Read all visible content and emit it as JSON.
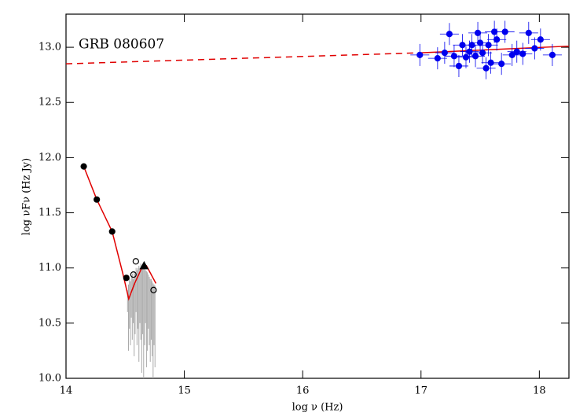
{
  "chart_data": {
    "type": "scatter",
    "annotation": "GRB 080607",
    "xlabel": "log ν (Hz)",
    "ylabel": "log νFν (Hz Jy)",
    "xlim": [
      14,
      18.25
    ],
    "ylim": [
      10,
      13.3
    ],
    "xticks": [
      14,
      15,
      16,
      17,
      18
    ],
    "yticks": [
      {
        "value": 10,
        "label": "10.0"
      },
      {
        "value": 10.5,
        "label": "10.5"
      },
      {
        "value": 11,
        "label": "11.0"
      },
      {
        "value": 11.5,
        "label": "11.5"
      },
      {
        "value": 12,
        "label": "12.0"
      },
      {
        "value": 12.5,
        "label": "12.5"
      },
      {
        "value": 13,
        "label": "13.0"
      }
    ],
    "spectrum": {
      "color": "#aaaaaa",
      "x": [
        14.52,
        14.528,
        14.536,
        14.544,
        14.552,
        14.56,
        14.568,
        14.576,
        14.584,
        14.592,
        14.6,
        14.608,
        14.616,
        14.624,
        14.632,
        14.64,
        14.648,
        14.656,
        14.664,
        14.672,
        14.68,
        14.688,
        14.696,
        14.704,
        14.712,
        14.72,
        14.728,
        14.736,
        14.744,
        14.752
      ],
      "low": [
        10.6,
        10.25,
        10.45,
        10.3,
        10.55,
        10.35,
        10.5,
        10.2,
        10.4,
        10.6,
        10.3,
        10.45,
        10.15,
        10.5,
        10.35,
        10.05,
        10.4,
        10.0,
        10.3,
        10.5,
        10.1,
        10.25,
        10.45,
        10.3,
        10.15,
        10.35,
        10.2,
        10.0,
        10.3,
        10.1
      ],
      "high": [
        10.8,
        10.85,
        10.9,
        10.88,
        10.92,
        10.95,
        10.9,
        10.97,
        10.95,
        11.0,
        10.98,
        11.0,
        11.02,
        11.0,
        11.04,
        11.02,
        11.03,
        11.0,
        11.02,
        10.98,
        10.97,
        10.96,
        10.94,
        10.92,
        10.9,
        10.9,
        10.88,
        10.86,
        10.85,
        10.84
      ]
    },
    "lines": [
      {
        "color": "#e00000",
        "dashed": false,
        "x": [
          14.15,
          14.26,
          14.39,
          14.48,
          14.53,
          14.58,
          14.64,
          14.68,
          14.74,
          14.76
        ],
        "y": [
          11.92,
          11.62,
          11.33,
          10.95,
          10.72,
          10.86,
          11.0,
          11.02,
          10.9,
          10.86
        ]
      },
      {
        "color": "#e00000",
        "dashed": true,
        "x": [
          14,
          17
        ],
        "y": [
          12.85,
          12.95
        ]
      },
      {
        "color": "#e00000",
        "dashed": false,
        "x": [
          17,
          18.25
        ],
        "y": [
          12.95,
          13.01
        ]
      }
    ],
    "points": [
      {
        "marker": "circle",
        "color": "#000000",
        "filled": true,
        "x": [
          14.15,
          14.26,
          14.39,
          14.51
        ],
        "y": [
          11.92,
          11.62,
          11.33,
          10.91
        ]
      },
      {
        "marker": "circle",
        "color": "#000000",
        "filled": false,
        "x": [
          14.57,
          14.59,
          14.74
        ],
        "y": [
          10.94,
          11.06,
          10.8
        ]
      },
      {
        "marker": "triangle",
        "color": "#000000",
        "filled": true,
        "x": [
          14.66
        ],
        "y": [
          11.02
        ]
      },
      {
        "marker": "circle",
        "color": "#0000ee",
        "filled": true,
        "xerr": 0.08,
        "yerr": 0.1,
        "x": [
          16.99,
          17.14,
          17.2,
          17.24,
          17.28,
          17.32,
          17.35,
          17.38,
          17.41,
          17.43,
          17.46,
          17.48,
          17.5,
          17.52,
          17.55,
          17.57,
          17.59,
          17.62,
          17.64,
          17.68,
          17.71,
          17.77,
          17.81,
          17.86,
          17.91,
          17.96,
          18.01,
          18.11
        ],
        "y": [
          12.93,
          12.9,
          12.95,
          13.12,
          12.92,
          12.83,
          13.02,
          12.91,
          12.96,
          13.02,
          12.92,
          13.13,
          13.04,
          12.95,
          12.81,
          13.02,
          12.86,
          13.14,
          13.07,
          12.85,
          13.14,
          12.93,
          12.96,
          12.94,
          13.13,
          12.99,
          13.07,
          12.93
        ]
      }
    ]
  }
}
